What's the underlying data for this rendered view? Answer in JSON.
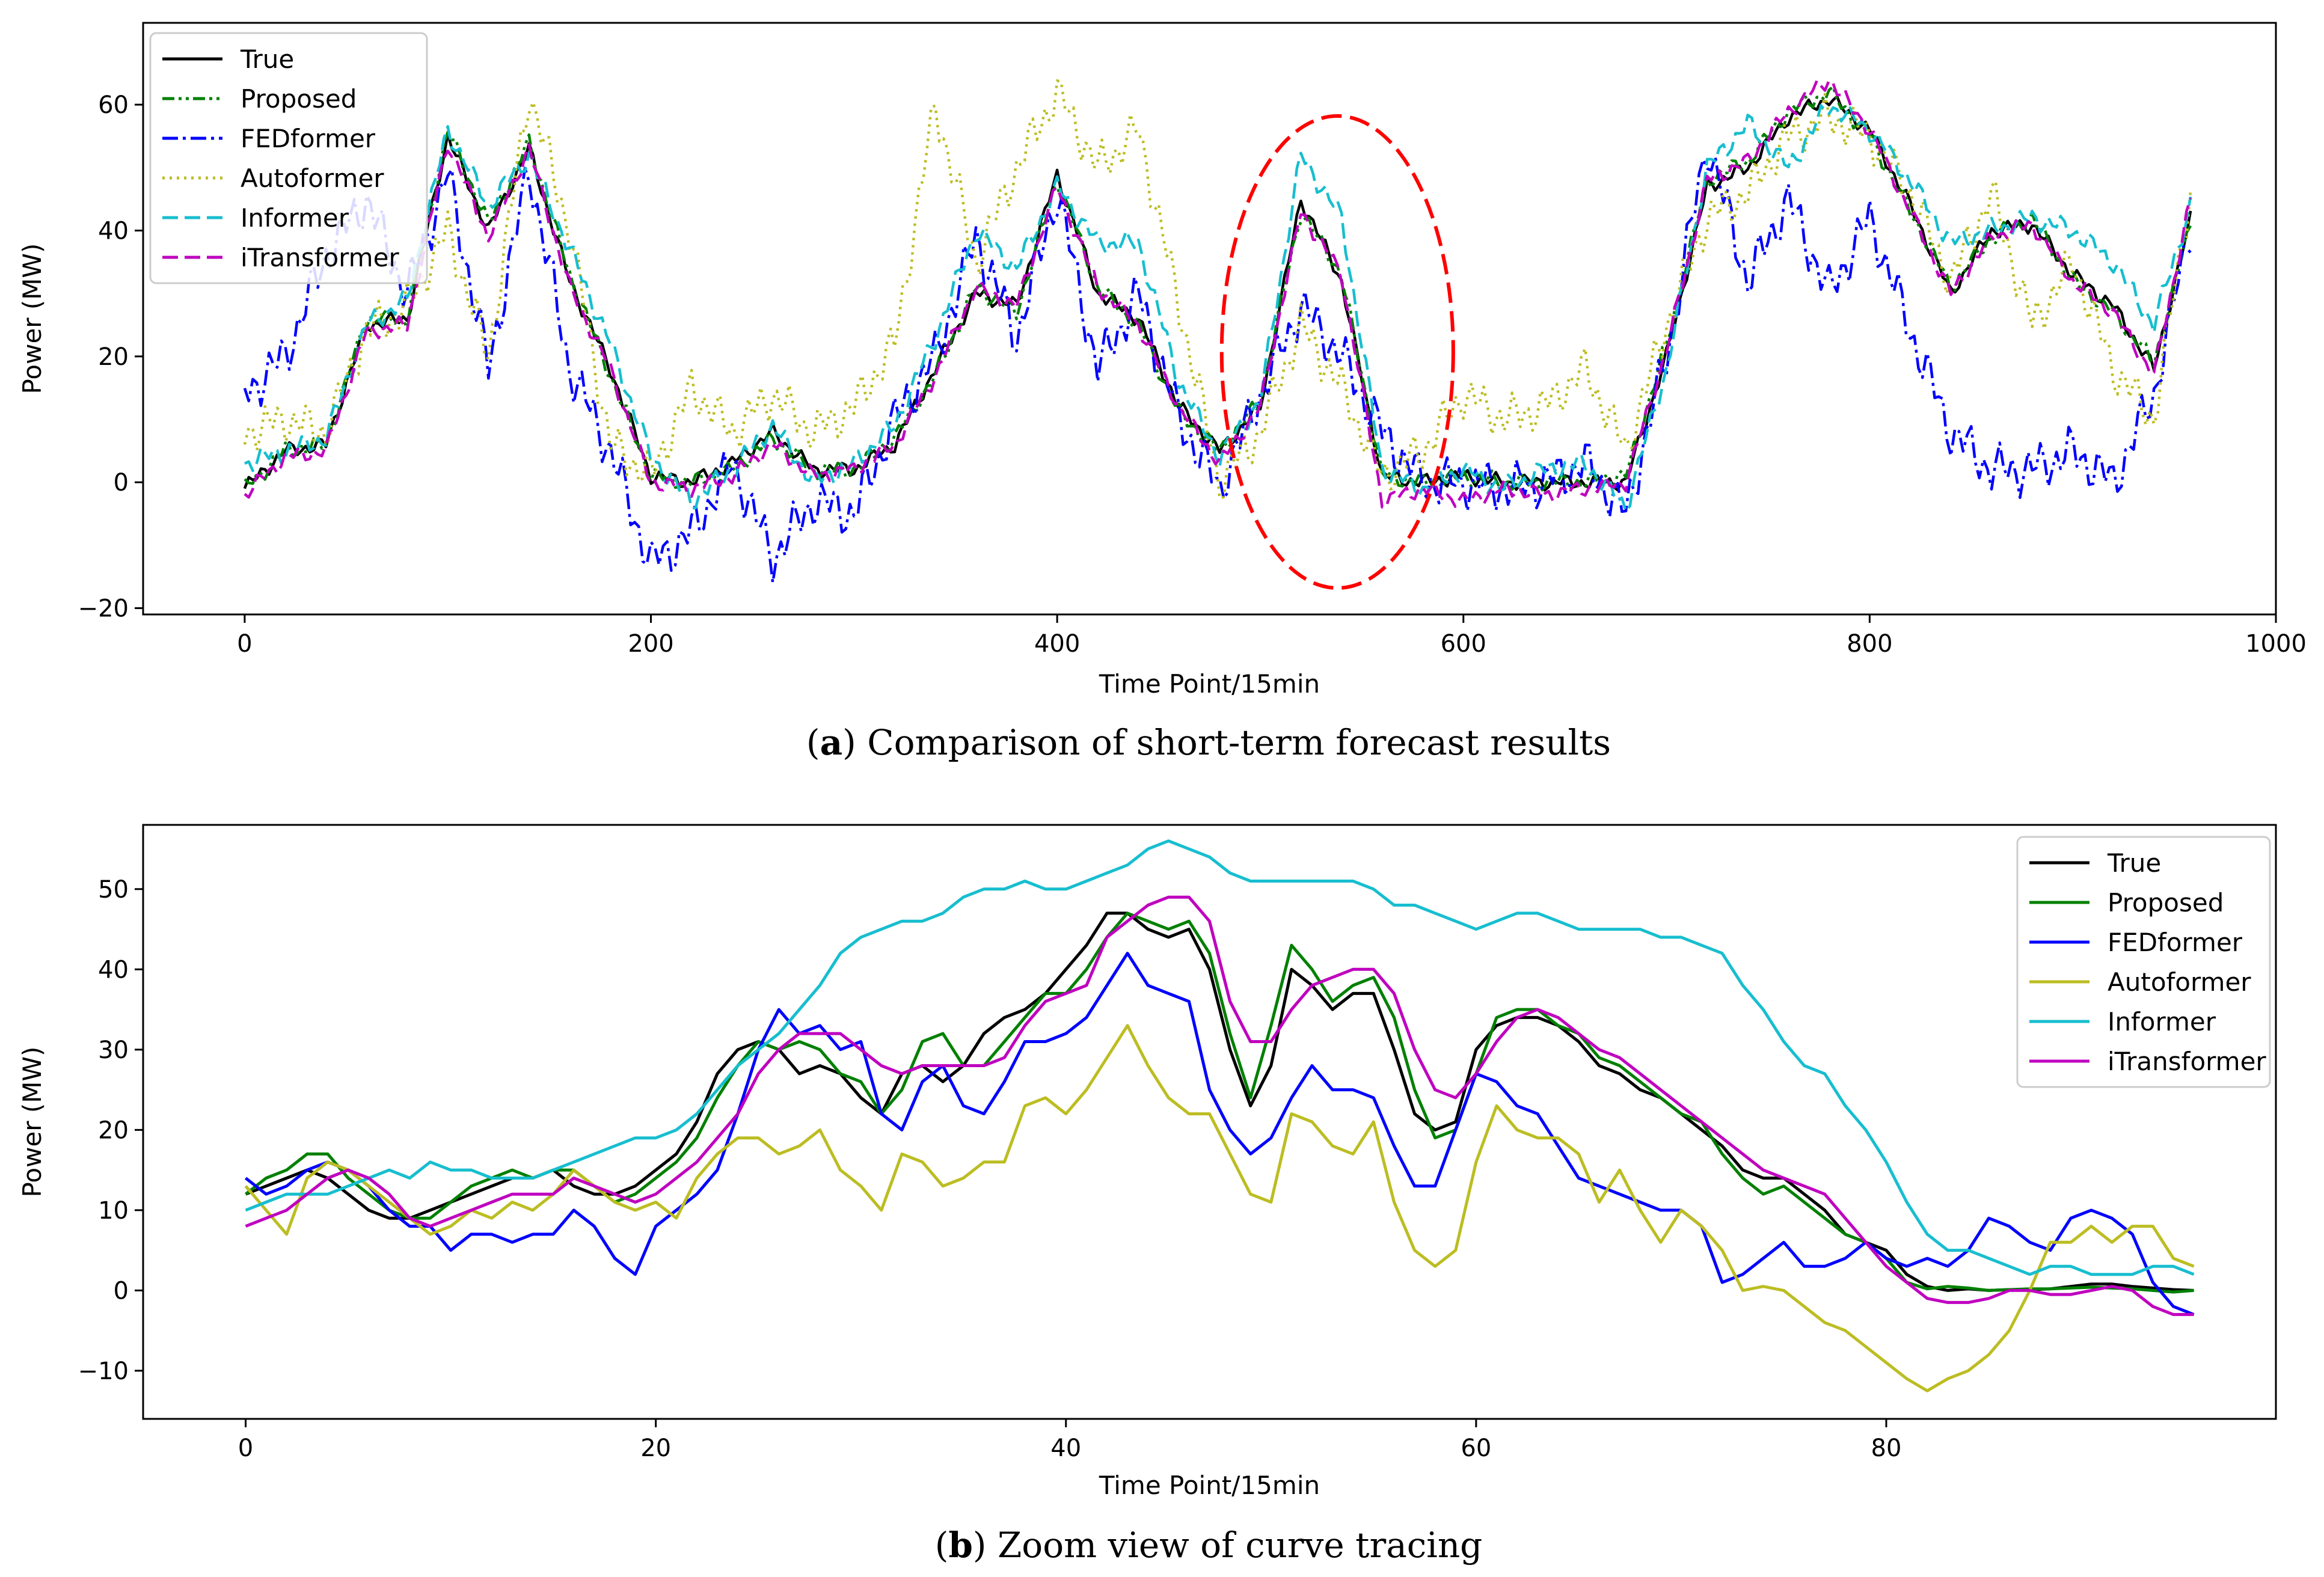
{
  "chart_data": [
    {
      "type": "line",
      "panel": "a",
      "caption_letter": "a",
      "caption_text": "Comparison of short-term forecast results",
      "xlabel": "Time Point/15min",
      "ylabel": "Power (MW)",
      "xlim": [
        -50,
        1000
      ],
      "ylim": [
        -21,
        73
      ],
      "xticks": [
        0,
        200,
        400,
        600,
        800,
        1000
      ],
      "yticks": [
        -20,
        0,
        20,
        40,
        60
      ],
      "x_anchors": [
        0,
        20,
        40,
        60,
        80,
        100,
        120,
        140,
        160,
        180,
        200,
        220,
        240,
        260,
        280,
        300,
        320,
        340,
        360,
        380,
        400,
        420,
        440,
        460,
        480,
        500,
        520,
        540,
        560,
        580,
        600,
        620,
        640,
        660,
        680,
        700,
        720,
        740,
        760,
        780,
        800,
        820,
        840,
        860,
        880,
        900,
        920,
        940,
        958
      ],
      "legend_position": "upper left",
      "series": [
        {
          "name": "True",
          "color": "#000000",
          "dash": "solid",
          "values": [
            -1,
            5,
            6,
            25,
            26,
            55,
            40,
            53,
            32,
            18,
            1,
            0,
            3,
            8,
            2,
            2,
            6,
            18,
            30,
            28,
            49,
            30,
            26,
            12,
            5,
            12,
            45,
            32,
            1,
            0,
            1,
            0,
            0,
            0,
            0,
            20,
            47,
            50,
            58,
            61,
            56,
            44,
            30,
            40,
            41,
            33,
            28,
            18,
            42
          ]
        },
        {
          "name": "Proposed",
          "color": "#008000",
          "dash": "dashdotdot",
          "values": [
            -1,
            5,
            6,
            26,
            26,
            56,
            41,
            54,
            33,
            17,
            1,
            0,
            2,
            7,
            2,
            2,
            7,
            17,
            31,
            27,
            48,
            31,
            25,
            11,
            5,
            13,
            43,
            33,
            1,
            0,
            1,
            0,
            0,
            0,
            1,
            22,
            48,
            51,
            59,
            62,
            55,
            43,
            31,
            39,
            42,
            32,
            27,
            19,
            41
          ]
        },
        {
          "name": "FEDformer",
          "color": "#0000ff",
          "dash": "dashdot",
          "values": [
            14,
            20,
            36,
            45,
            30,
            49,
            18,
            50,
            18,
            5,
            -13,
            -8,
            3,
            -12,
            -3,
            -5,
            10,
            20,
            39,
            23,
            46,
            18,
            30,
            10,
            -1,
            14,
            28,
            20,
            8,
            0,
            0,
            -1,
            0,
            3,
            -5,
            20,
            54,
            32,
            45,
            30,
            42,
            24,
            8,
            2,
            2,
            5,
            0,
            14,
            41
          ]
        },
        {
          "name": "Autoformer",
          "color": "#bcbd22",
          "dash": "dotted",
          "values": [
            8,
            10,
            8,
            24,
            28,
            40,
            20,
            62,
            40,
            6,
            1,
            15,
            8,
            14,
            8,
            12,
            22,
            60,
            35,
            50,
            62,
            50,
            56,
            28,
            0,
            8,
            25,
            15,
            1,
            5,
            14,
            10,
            12,
            18,
            5,
            25,
            42,
            46,
            55,
            58,
            55,
            46,
            32,
            46,
            25,
            35,
            18,
            10,
            47
          ]
        },
        {
          "name": "Informer",
          "color": "#17becf",
          "dash": "dashed",
          "values": [
            3,
            5,
            7,
            25,
            29,
            56,
            44,
            52,
            37,
            22,
            4,
            -3,
            2,
            9,
            0,
            3,
            9,
            23,
            40,
            34,
            47,
            38,
            38,
            16,
            4,
            13,
            52,
            42,
            2,
            -1,
            2,
            -1,
            2,
            3,
            -4,
            18,
            50,
            57,
            50,
            60,
            56,
            48,
            38,
            40,
            42,
            40,
            35,
            25,
            44
          ]
        },
        {
          "name": "iTransformer",
          "color": "#bf00bf",
          "dash": "dashed",
          "values": [
            -2,
            4,
            5,
            24,
            25,
            54,
            39,
            53,
            31,
            18,
            0,
            -1,
            1,
            6,
            1,
            2,
            6,
            17,
            31,
            28,
            47,
            31,
            25,
            12,
            3,
            12,
            43,
            33,
            -3,
            -1,
            -3,
            -1,
            -2,
            -1,
            0,
            21,
            48,
            51,
            59,
            64,
            56,
            43,
            30,
            39,
            41,
            32,
            27,
            17,
            45
          ]
        }
      ],
      "annotation": {
        "type": "ellipse",
        "color": "#ff0000",
        "dash": "dashed",
        "center_x": 538,
        "center_y": 20.7,
        "x_halfwidth": 57,
        "y_halfheight": 37.5
      }
    },
    {
      "type": "line",
      "panel": "b",
      "caption_letter": "b",
      "caption_text": "Zoom view of curve tracing",
      "xlabel": "Time Point/15min",
      "ylabel": "Power (MW)",
      "xlim": [
        -5,
        99
      ],
      "ylim": [
        -16,
        58
      ],
      "xticks": [
        0,
        20,
        40,
        60,
        80
      ],
      "yticks": [
        -10,
        0,
        10,
        20,
        30,
        40,
        50
      ],
      "x": [
        0,
        1,
        2,
        3,
        4,
        5,
        6,
        7,
        8,
        9,
        10,
        11,
        12,
        13,
        14,
        15,
        16,
        17,
        18,
        19,
        20,
        21,
        22,
        23,
        24,
        25,
        26,
        27,
        28,
        29,
        30,
        31,
        32,
        33,
        34,
        35,
        36,
        37,
        38,
        39,
        40,
        41,
        42,
        43,
        44,
        45,
        46,
        47,
        48,
        49,
        50,
        51,
        52,
        53,
        54,
        55,
        56,
        57,
        58,
        59,
        60,
        61,
        62,
        63,
        64,
        65,
        66,
        67,
        68,
        69,
        70,
        71,
        72,
        73,
        74,
        75,
        76,
        77,
        78,
        79,
        80,
        81,
        82,
        83,
        84,
        85,
        86,
        87,
        88,
        89,
        90,
        91,
        92,
        93,
        94,
        95
      ],
      "legend_position": "upper right",
      "series": [
        {
          "name": "True",
          "color": "#000000",
          "values": [
            12,
            13,
            14,
            15,
            14,
            12,
            10,
            9,
            9,
            10,
            11,
            12,
            13,
            14,
            14,
            15,
            13,
            12,
            12,
            13,
            15,
            17,
            21,
            27,
            30,
            31,
            30,
            27,
            28,
            27,
            24,
            22,
            27,
            28,
            26,
            28,
            32,
            34,
            35,
            37,
            40,
            43,
            47,
            47,
            45,
            44,
            45,
            40,
            30,
            23,
            28,
            40,
            38,
            35,
            37,
            37,
            30,
            22,
            20,
            21,
            30,
            33,
            34,
            34,
            33,
            31,
            28,
            27,
            25,
            24,
            22,
            20,
            18,
            15,
            14,
            14,
            12,
            10,
            7,
            6,
            5,
            2,
            0.5,
            0,
            0.2,
            0,
            0.1,
            0.1,
            0.2,
            0.5,
            0.8,
            0.8,
            0.5,
            0.3,
            0.1,
            0
          ]
        },
        {
          "name": "Proposed",
          "color": "#008000",
          "values": [
            12,
            14,
            15,
            17,
            17,
            14,
            12,
            10,
            9,
            9,
            11,
            13,
            14,
            15,
            14,
            15,
            15,
            13,
            11,
            12,
            14,
            16,
            19,
            24,
            28,
            31,
            30,
            31,
            30,
            27,
            26,
            22,
            25,
            31,
            32,
            28,
            28,
            31,
            34,
            37,
            37,
            40,
            44,
            47,
            46,
            45,
            46,
            42,
            32,
            24,
            33,
            43,
            40,
            36,
            38,
            39,
            34,
            25,
            19,
            20,
            27,
            34,
            35,
            35,
            33,
            32,
            29,
            28,
            26,
            24,
            22,
            21,
            17,
            14,
            12,
            13,
            11,
            9,
            7,
            6,
            4,
            1,
            0.2,
            0.5,
            0.3,
            0,
            0.1,
            0.2,
            0.2,
            0.3,
            0.4,
            0.3,
            0.2,
            0,
            -0.2,
            0
          ]
        },
        {
          "name": "FEDformer",
          "color": "#0000ff",
          "values": [
            14,
            12,
            13,
            15,
            16,
            15,
            13,
            10,
            8,
            8,
            5,
            7,
            7,
            6,
            7,
            7,
            10,
            8,
            4,
            2,
            8,
            10,
            12,
            15,
            22,
            30,
            35,
            32,
            33,
            30,
            31,
            22,
            20,
            26,
            28,
            23,
            22,
            26,
            31,
            31,
            32,
            34,
            38,
            42,
            38,
            37,
            36,
            25,
            20,
            17,
            19,
            24,
            28,
            25,
            25,
            24,
            18,
            13,
            13,
            20,
            27,
            26,
            23,
            22,
            18,
            14,
            13,
            12,
            11,
            10,
            10,
            8,
            1,
            2,
            4,
            6,
            3,
            3,
            4,
            6,
            4,
            3,
            4,
            3,
            5,
            9,
            8,
            6,
            5,
            9,
            10,
            9,
            7,
            1,
            -2,
            -3
          ]
        },
        {
          "name": "Autoformer",
          "color": "#bcbd22",
          "values": [
            13,
            10,
            7,
            14,
            16,
            15,
            13,
            11,
            9,
            7,
            8,
            10,
            9,
            11,
            10,
            12,
            15,
            13,
            11,
            10,
            11,
            9,
            14,
            17,
            19,
            19,
            17,
            18,
            20,
            15,
            13,
            10,
            17,
            16,
            13,
            14,
            16,
            16,
            23,
            24,
            22,
            25,
            29,
            33,
            28,
            24,
            22,
            22,
            17,
            12,
            11,
            22,
            21,
            18,
            17,
            21,
            11,
            5,
            3,
            5,
            16,
            23,
            20,
            19,
            19,
            17,
            11,
            15,
            10,
            6,
            10,
            8,
            5,
            0,
            0.5,
            0,
            -2,
            -4,
            -5,
            -7,
            -9,
            -11,
            -12.5,
            -11,
            -10,
            -8,
            -5,
            0,
            6,
            6,
            8,
            6,
            8,
            8,
            4,
            3
          ]
        },
        {
          "name": "Informer",
          "color": "#17becf",
          "values": [
            10,
            11,
            12,
            12,
            12,
            13,
            14,
            15,
            14,
            16,
            15,
            15,
            14,
            14,
            14,
            15,
            16,
            17,
            18,
            19,
            19,
            20,
            22,
            25,
            28,
            30,
            32,
            35,
            38,
            42,
            44,
            45,
            46,
            46,
            47,
            49,
            50,
            50,
            51,
            50,
            50,
            51,
            52,
            53,
            55,
            56,
            55,
            54,
            52,
            51,
            51,
            51,
            51,
            51,
            51,
            50,
            48,
            48,
            47,
            46,
            45,
            46,
            47,
            47,
            46,
            45,
            45,
            45,
            45,
            44,
            44,
            43,
            42,
            38,
            35,
            31,
            28,
            27,
            23,
            20,
            16,
            11,
            7,
            5,
            5,
            4,
            3,
            2,
            3,
            3,
            2,
            2,
            2,
            3,
            3,
            2
          ]
        },
        {
          "name": "iTransformer",
          "color": "#bf00bf",
          "values": [
            8,
            9,
            10,
            12,
            14,
            15,
            14,
            12,
            9,
            8,
            9,
            10,
            11,
            12,
            12,
            12,
            14,
            13,
            12,
            11,
            12,
            14,
            16,
            19,
            22,
            27,
            30,
            32,
            32,
            32,
            30,
            28,
            27,
            28,
            28,
            28,
            28,
            29,
            33,
            36,
            37,
            38,
            44,
            46,
            48,
            49,
            49,
            46,
            36,
            31,
            31,
            35,
            38,
            39,
            40,
            40,
            37,
            30,
            25,
            24,
            27,
            31,
            34,
            35,
            34,
            32,
            30,
            29,
            27,
            25,
            23,
            21,
            19,
            17,
            15,
            14,
            13,
            12,
            9,
            6,
            3,
            1,
            -1,
            -1.5,
            -1.5,
            -1,
            0,
            0,
            -0.5,
            -0.5,
            0,
            0.5,
            0,
            -2,
            -3,
            -3
          ]
        }
      ]
    }
  ]
}
